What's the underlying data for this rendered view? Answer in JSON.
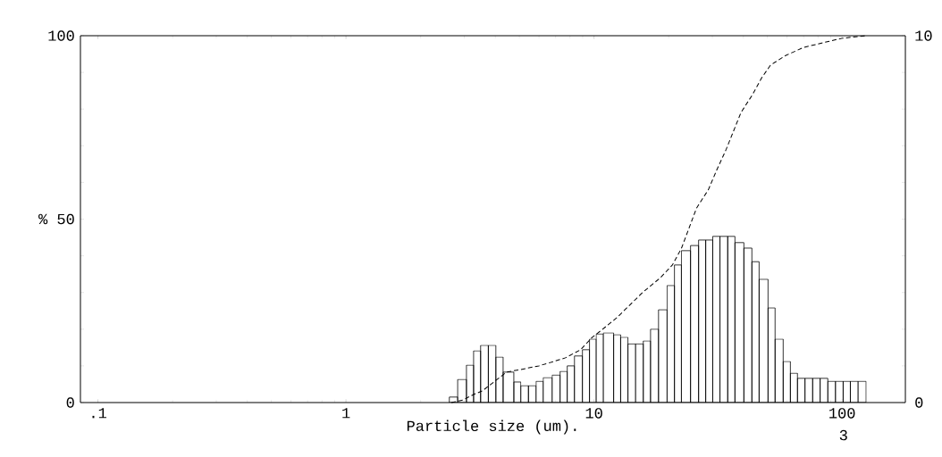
{
  "chart_data": {
    "type": "histogram",
    "xlabel": "Particle size (um).",
    "log": "x",
    "xlim": [
      0.085,
      180
    ],
    "ylim": [
      0,
      100
    ],
    "y2lim": [
      0,
      10
    ],
    "xticks": [
      {
        "value": 0.1,
        "label": ".1"
      },
      1,
      10,
      100
    ],
    "yticks": [
      0,
      {
        "value": 10,
        "label": null
      },
      {
        "value": 20,
        "label": null
      },
      {
        "value": 30,
        "label": null
      },
      {
        "value": 40,
        "label": null
      },
      {
        "value": 50,
        "label": "% 50"
      },
      {
        "value": 60,
        "label": null
      },
      {
        "value": 70,
        "label": null
      },
      {
        "value": 80,
        "label": null
      },
      {
        "value": 90,
        "label": null
      },
      100
    ],
    "y2ticks": [
      0,
      {
        "value": 1,
        "label": null
      },
      {
        "value": 2,
        "label": null
      },
      {
        "value": 3,
        "label": null
      },
      {
        "value": 4,
        "label": null
      },
      {
        "value": 5,
        "label": null
      },
      {
        "value": 6,
        "label": null
      },
      {
        "value": 7,
        "label": null
      },
      {
        "value": 8,
        "label": null
      },
      {
        "value": 9,
        "label": null
      },
      10
    ],
    "annotations": [
      "3"
    ],
    "series": [
      {
        "type": "histogram",
        "axis": "y2",
        "color": "#000000",
        "bins": [
          2.61,
          2.82,
          3.06,
          3.27,
          3.49,
          3.75,
          4.02,
          4.3,
          4.75,
          5.07,
          5.44,
          5.84,
          6.24,
          6.78,
          7.3,
          7.8,
          8.34,
          8.98,
          9.59,
          10.2,
          10.9,
          12.0,
          12.8,
          13.7,
          14.7,
          15.8,
          16.9,
          18.2,
          19.7,
          21.1,
          22.5,
          24.5,
          26.4,
          28.2,
          30.1,
          32.2,
          34.6,
          37.0,
          40.2,
          43.3,
          46.3,
          50.3,
          53.7,
          57.9,
          61.9,
          66.1,
          70.9,
          76.1,
          81.6,
          87.6,
          94.1,
          101,
          108,
          116,
          125
        ],
        "values": [
          0.15,
          0.63,
          1.02,
          1.41,
          1.56,
          1.56,
          1.24,
          0.83,
          0.56,
          0.46,
          0.46,
          0.58,
          0.68,
          0.75,
          0.85,
          1.0,
          1.27,
          1.44,
          1.73,
          1.87,
          1.9,
          1.85,
          1.78,
          1.6,
          1.6,
          1.68,
          2.0,
          2.53,
          3.19,
          3.75,
          4.14,
          4.28,
          4.43,
          4.43,
          4.53,
          4.53,
          4.53,
          4.36,
          4.21,
          3.84,
          3.36,
          2.58,
          1.73,
          1.12,
          0.8,
          0.66,
          0.66,
          0.66,
          0.66,
          0.58,
          0.58,
          0.58,
          0.58,
          0.58
        ]
      },
      {
        "type": "line",
        "color": "#000000",
        "line_style": "dashed",
        "x": [
          2.66,
          2.96,
          3.27,
          3.55,
          4.44,
          5.24,
          5.99,
          6.89,
          7.67,
          8.83,
          9.84,
          10.7,
          12.3,
          15.7,
          18.5,
          20.7,
          22.5,
          25.9,
          28.9,
          31.3,
          34.1,
          39.1,
          43.6,
          47.5,
          51.5,
          59.2,
          70.0,
          82.8,
          100,
          125
        ],
        "values": [
          0,
          0.7,
          2.2,
          3.2,
          8.3,
          9.2,
          10,
          11.2,
          12.2,
          14.4,
          17.8,
          19.7,
          23,
          30,
          34,
          37.5,
          42,
          53,
          58,
          63.5,
          69,
          79,
          84,
          88.6,
          92,
          94.6,
          96.8,
          98,
          99.3,
          100
        ]
      }
    ]
  }
}
